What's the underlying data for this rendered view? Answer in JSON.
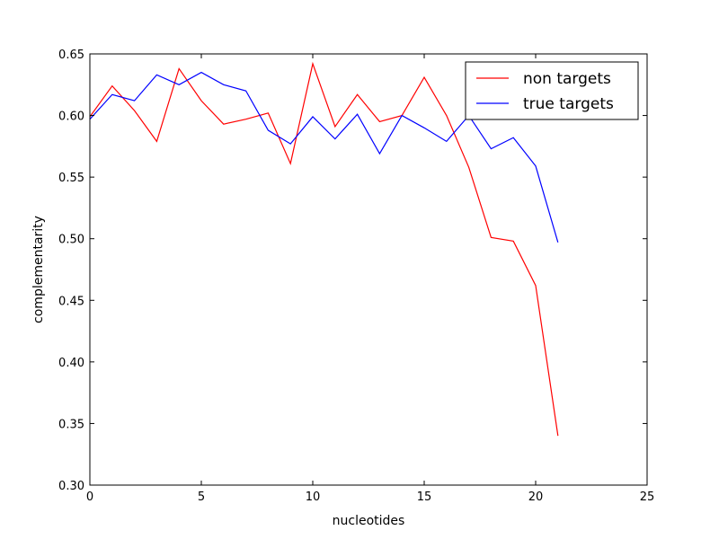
{
  "chart_data": {
    "type": "line",
    "title": "",
    "xlabel": "nucleotides",
    "ylabel": "complementarity",
    "xlim": [
      0,
      25
    ],
    "ylim": [
      0.3,
      0.65
    ],
    "xticks": [
      0,
      5,
      10,
      15,
      20,
      25
    ],
    "xtick_labels": [
      "0",
      "5",
      "10",
      "15",
      "20",
      "25"
    ],
    "yticks": [
      0.3,
      0.35,
      0.4,
      0.45,
      0.5,
      0.55,
      0.6,
      0.65
    ],
    "ytick_labels": [
      "0.30",
      "0.35",
      "0.40",
      "0.45",
      "0.50",
      "0.55",
      "0.60",
      "0.65"
    ],
    "grid": false,
    "legend_position": "top-right",
    "x": [
      0,
      1,
      2,
      3,
      4,
      5,
      6,
      7,
      8,
      9,
      10,
      11,
      12,
      13,
      14,
      15,
      16,
      17,
      18,
      19,
      20,
      21
    ],
    "series": [
      {
        "name": "non targets",
        "color": "#ff0000",
        "values": [
          0.599,
          0.624,
          0.604,
          0.579,
          0.638,
          0.612,
          0.593,
          0.597,
          0.602,
          0.561,
          0.642,
          0.591,
          0.617,
          0.595,
          0.6,
          0.631,
          0.6,
          0.558,
          0.501,
          0.498,
          0.462,
          0.34
        ]
      },
      {
        "name": "true targets",
        "color": "#0000ff",
        "values": [
          0.597,
          0.617,
          0.612,
          0.633,
          0.625,
          0.635,
          0.625,
          0.62,
          0.588,
          0.577,
          0.599,
          0.581,
          0.601,
          0.569,
          0.6,
          0.59,
          0.579,
          0.6,
          0.573,
          0.582,
          0.559,
          0.497
        ]
      }
    ]
  }
}
